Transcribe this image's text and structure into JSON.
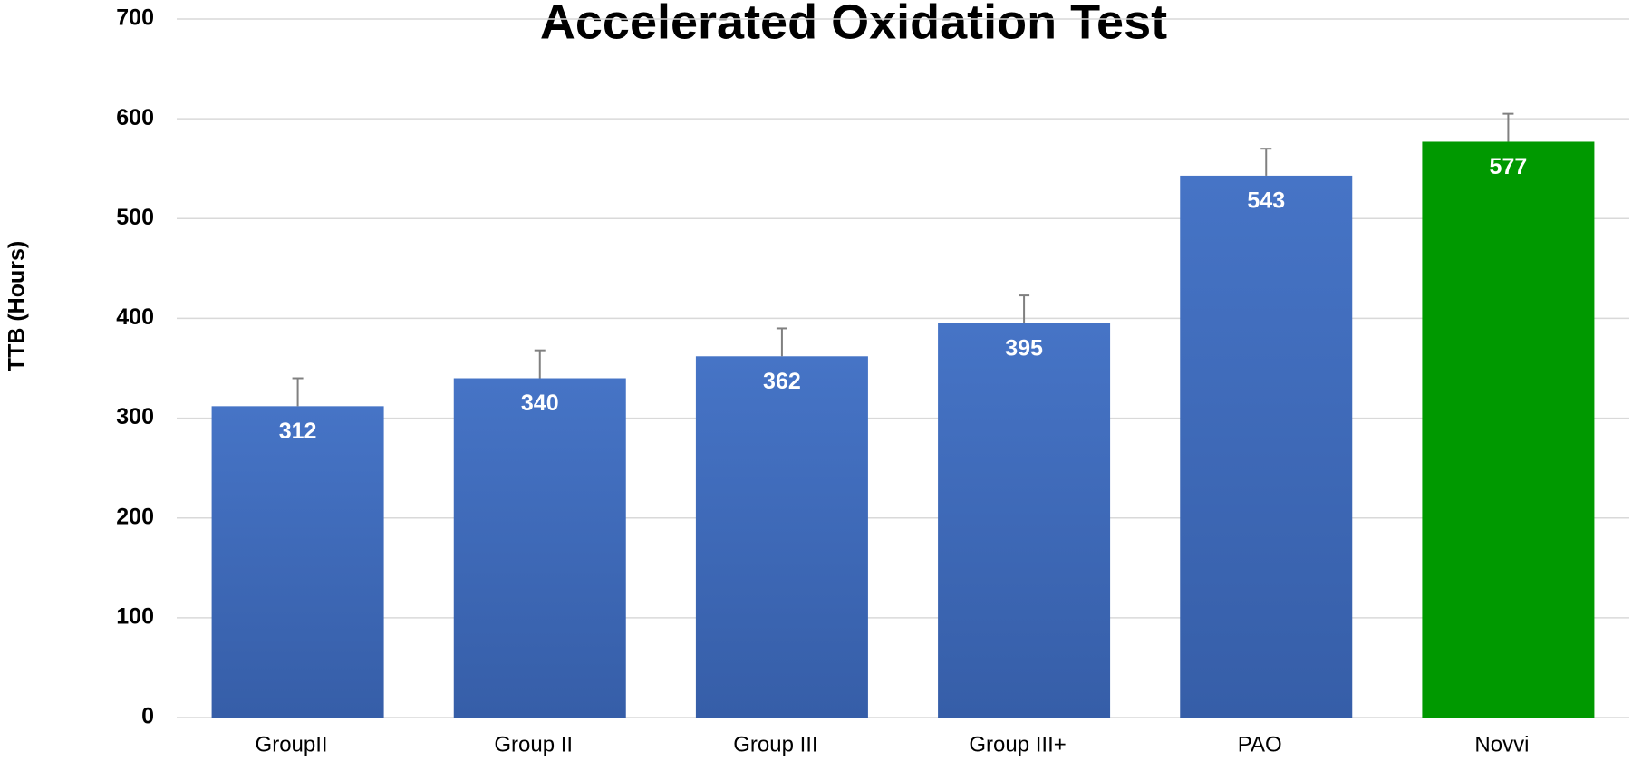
{
  "chart_data": {
    "type": "bar",
    "title": "Accelerated Oxidation Test",
    "y_label": "TTB (Hours)",
    "categories": [
      "GroupII",
      "Group II",
      "Group III",
      "Group III+",
      "PAO",
      "Novvi"
    ],
    "values": [
      312,
      340,
      362,
      395,
      543,
      577
    ],
    "errors": [
      28,
      28,
      28,
      28,
      27,
      28
    ],
    "colors": [
      "#4472c4",
      "#4472c4",
      "#4472c4",
      "#4472c4",
      "#4472c4",
      "#009900"
    ],
    "ylim": [
      0,
      700
    ],
    "yticks": [
      0,
      100,
      200,
      300,
      400,
      500,
      600,
      700
    ],
    "grid": true
  }
}
